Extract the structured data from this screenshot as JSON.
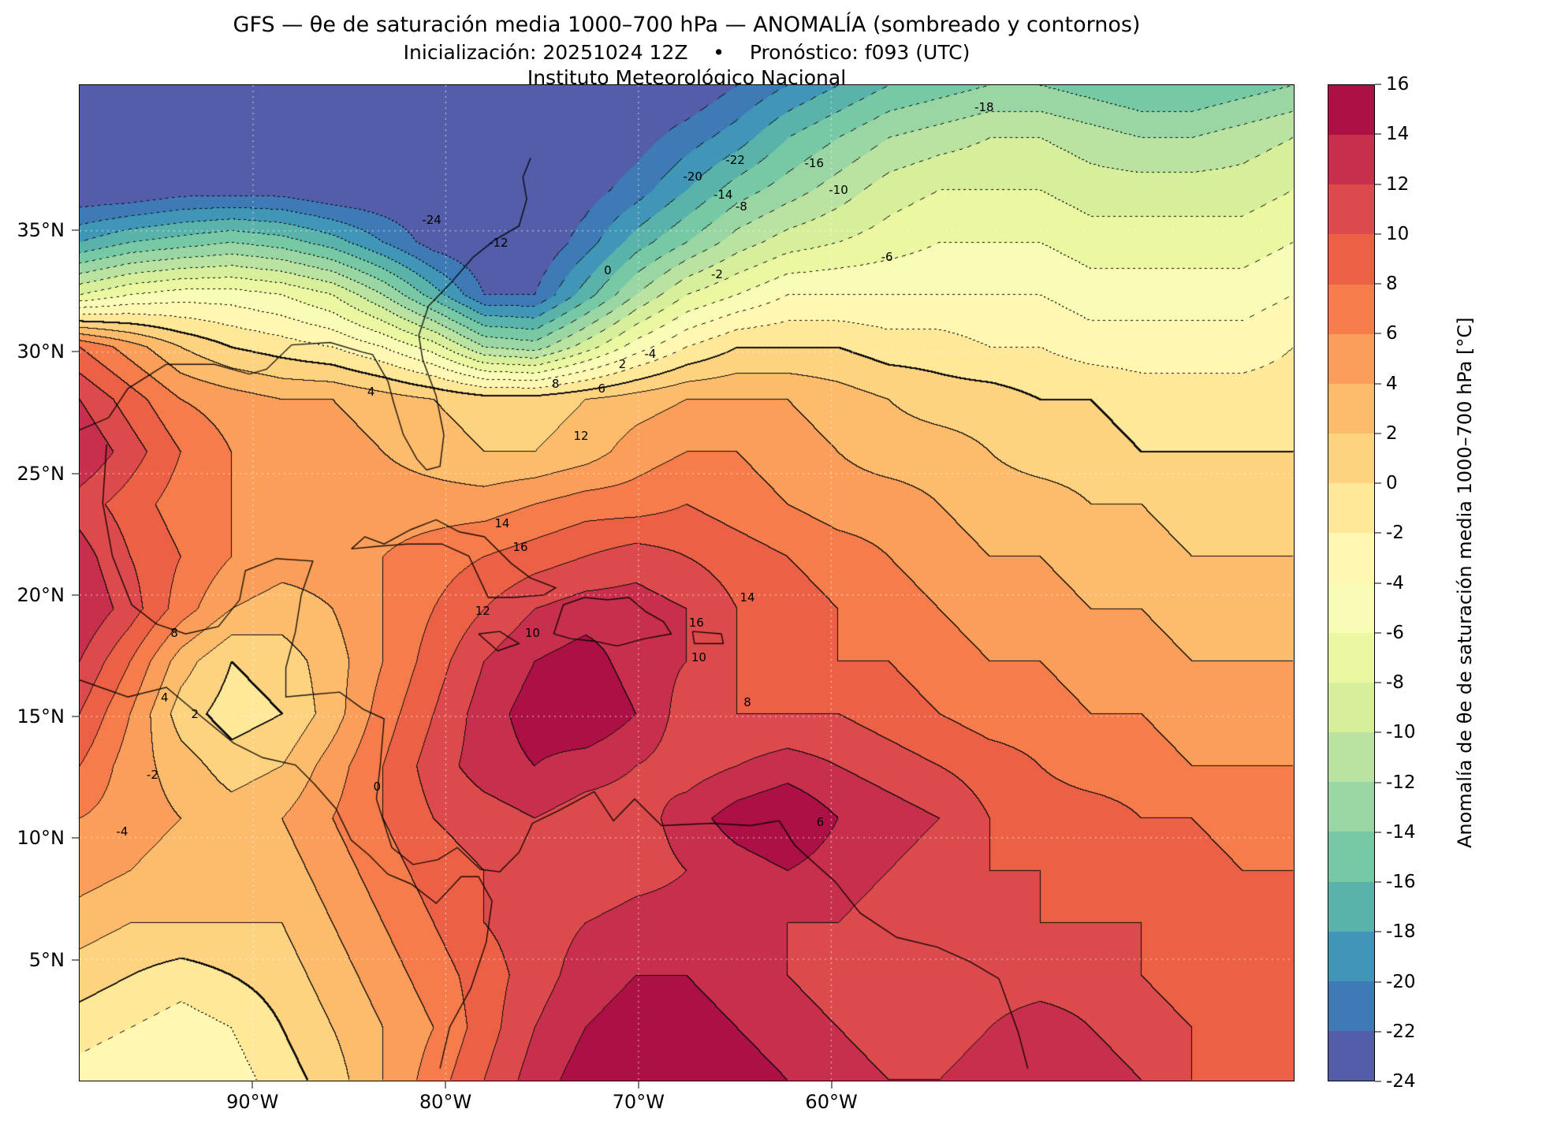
{
  "header": {
    "line1": "GFS — θe de saturación media 1000–700 hPa — ANOMALÍA (sombreado y contornos)",
    "line2": "Inicialización: 20251024 12Z    •    Pronóstico: f093 (UTC)",
    "line3": "Instituto Meteorológico Nacional"
  },
  "axes": {
    "lat_ticks": [
      {
        "label": "35°N",
        "value": 35
      },
      {
        "label": "30°N",
        "value": 30
      },
      {
        "label": "25°N",
        "value": 25
      },
      {
        "label": "20°N",
        "value": 20
      },
      {
        "label": "15°N",
        "value": 15
      },
      {
        "label": "10°N",
        "value": 10
      },
      {
        "label": "5°N",
        "value": 5
      }
    ],
    "lon_ticks": [
      {
        "label": "90°W",
        "value": -90
      },
      {
        "label": "80°W",
        "value": -80
      },
      {
        "label": "70°W",
        "value": -70
      },
      {
        "label": "60°W",
        "value": -60
      }
    ]
  },
  "colorbar": {
    "label": "Anomalía de θe de saturación media 1000–700 hPa [°C]",
    "tick_values": [
      16,
      14,
      12,
      10,
      8,
      6,
      4,
      2,
      0,
      -2,
      -4,
      -6,
      -8,
      -10,
      -12,
      -14,
      -16,
      -18,
      -20,
      -22,
      -24
    ]
  },
  "chart_data": {
    "type": "heatmap",
    "title": "GFS — θe de saturación media 1000–700 hPa — ANOMALÍA (sombreado y contornos)",
    "subtitle": "Inicialización: 20251024 12Z • Pronóstico: f093 (UTC)",
    "institution": "Instituto Meteorológico Nacional",
    "units": "°C",
    "lon_range": [
      -99,
      -36
    ],
    "lat_range": [
      0,
      41
    ],
    "level_min": -24,
    "level_max": 16,
    "level_step": 2,
    "band_colors": [
      "#535da9",
      "#3d7ab6",
      "#3f96b7",
      "#59b3ab",
      "#77c9a5",
      "#9ad6a4",
      "#bae3a1",
      "#d7ef9b",
      "#ecf7a2",
      "#f9fcb5",
      "#fff7b2",
      "#ffe898",
      "#fed380",
      "#fdbb6c",
      "#fb9e59",
      "#f67d4b",
      "#ec6146",
      "#dd4a4c",
      "#c72f4c",
      "#ac1045"
    ],
    "gridline_lats": [
      5,
      10,
      15,
      20,
      25,
      30,
      35
    ],
    "gridline_lons": [
      -90,
      -80,
      -70,
      -60
    ],
    "grid": {
      "cols": 25,
      "rows": 20,
      "values": [
        [
          -24,
          -24,
          -24,
          -24,
          -24,
          -24,
          -24,
          -24,
          -24,
          -24,
          -24,
          -24,
          -24,
          -22,
          -20,
          -18,
          -16,
          -15,
          -14,
          -14,
          -15,
          -16,
          -16,
          -15,
          -14
        ],
        [
          -24,
          -24,
          -24,
          -24,
          -24,
          -24,
          -24,
          -24,
          -24,
          -24,
          -24,
          -23,
          -21,
          -19,
          -16,
          -14,
          -12,
          -11,
          -10,
          -10,
          -11,
          -12,
          -12,
          -11,
          -10
        ],
        [
          -24,
          -24,
          -23,
          -23,
          -23,
          -24,
          -24,
          -24,
          -24,
          -24,
          -23,
          -21,
          -18,
          -15,
          -13,
          -11,
          -9,
          -8,
          -8,
          -8,
          -9,
          -9,
          -9,
          -9,
          -8
        ],
        [
          -18,
          -16,
          -15,
          -14,
          -15,
          -17,
          -20,
          -23,
          -24,
          -24,
          -21,
          -17,
          -14,
          -11,
          -9,
          -8,
          -7,
          -6,
          -6,
          -6,
          -7,
          -7,
          -7,
          -7,
          -6
        ],
        [
          -8,
          -6,
          -5,
          -5,
          -6,
          -8,
          -12,
          -17,
          -22,
          -22,
          -17,
          -12,
          -8,
          -6,
          -4,
          -4,
          -4,
          -4,
          -4,
          -4,
          -5,
          -5,
          -5,
          -5,
          -4
        ],
        [
          8,
          5,
          2,
          0,
          -1,
          -2,
          -4,
          -7,
          -12,
          -13,
          -9,
          -5,
          -2,
          0,
          0,
          0,
          -1,
          -1,
          -2,
          -2,
          -3,
          -3,
          -3,
          -3,
          -2
        ],
        [
          12,
          9,
          6,
          5,
          4,
          4,
          3,
          2,
          1,
          1,
          2,
          3,
          4,
          4,
          4,
          3,
          2,
          1,
          1,
          0,
          0,
          -1,
          -1,
          -1,
          -1
        ],
        [
          14,
          11,
          8,
          6,
          5,
          5,
          4,
          3,
          2,
          2,
          3,
          5,
          6,
          6,
          5,
          4,
          3,
          3,
          2,
          1,
          1,
          0,
          0,
          0,
          0
        ],
        [
          11,
          9,
          7,
          6,
          5,
          5,
          5,
          5,
          5,
          6,
          7,
          7,
          8,
          7,
          6,
          5,
          5,
          4,
          3,
          3,
          2,
          2,
          1,
          1,
          1
        ],
        [
          13,
          10,
          8,
          6,
          5,
          5,
          6,
          7,
          8,
          9,
          10,
          11,
          10,
          9,
          8,
          7,
          6,
          5,
          4,
          4,
          3,
          3,
          2,
          2,
          2
        ],
        [
          14,
          11,
          7,
          4,
          3,
          4,
          6,
          8,
          10,
          12,
          13,
          13,
          12,
          10,
          9,
          8,
          7,
          6,
          5,
          5,
          4,
          4,
          3,
          3,
          3
        ],
        [
          12,
          8,
          3,
          0,
          1,
          3,
          6,
          9,
          12,
          14,
          15,
          13,
          12,
          10,
          9,
          8,
          8,
          7,
          6,
          6,
          5,
          5,
          4,
          4,
          4
        ],
        [
          10,
          6,
          1,
          -1,
          0,
          3,
          7,
          10,
          13,
          15,
          16,
          14,
          11,
          10,
          10,
          10,
          9,
          8,
          7,
          7,
          6,
          6,
          5,
          5,
          5
        ],
        [
          8,
          5,
          3,
          1,
          2,
          5,
          8,
          11,
          13,
          14,
          13,
          12,
          11,
          12,
          13,
          12,
          11,
          10,
          9,
          8,
          7,
          7,
          6,
          6,
          6
        ],
        [
          6,
          5,
          4,
          3,
          4,
          6,
          8,
          10,
          11,
          12,
          11,
          11,
          13,
          15,
          16,
          14,
          13,
          12,
          10,
          9,
          9,
          8,
          8,
          7,
          7
        ],
        [
          5,
          4,
          3,
          3,
          3,
          5,
          7,
          9,
          10,
          11,
          10,
          11,
          12,
          13,
          14,
          13,
          12,
          11,
          10,
          10,
          9,
          9,
          9,
          8,
          8
        ],
        [
          3,
          2,
          2,
          2,
          2,
          4,
          6,
          8,
          10,
          11,
          12,
          13,
          13,
          12,
          12,
          12,
          11,
          11,
          10,
          10,
          10,
          10,
          9,
          9,
          9
        ],
        [
          1,
          0,
          -1,
          0,
          1,
          3,
          5,
          7,
          9,
          11,
          13,
          14,
          14,
          13,
          12,
          11,
          11,
          10,
          11,
          11,
          11,
          10,
          9,
          9,
          8
        ],
        [
          -1,
          -2,
          -3,
          -2,
          0,
          2,
          4,
          6,
          9,
          12,
          14,
          15,
          15,
          14,
          13,
          12,
          11,
          11,
          12,
          13,
          12,
          11,
          10,
          9,
          8
        ],
        [
          -3,
          -4,
          -4,
          -3,
          -1,
          1,
          4,
          7,
          10,
          13,
          15,
          16,
          16,
          15,
          14,
          13,
          12,
          12,
          13,
          14,
          13,
          12,
          10,
          9,
          9
        ]
      ]
    },
    "contour_labels": [
      {
        "t": "-24",
        "x": 29,
        "y": 13.5
      },
      {
        "t": "-22",
        "x": 54,
        "y": 7.5
      },
      {
        "t": "-20",
        "x": 50.5,
        "y": 9.2
      },
      {
        "t": "-18",
        "x": 74.5,
        "y": 2.2
      },
      {
        "t": "-16",
        "x": 60.5,
        "y": 7.8
      },
      {
        "t": "-14",
        "x": 53,
        "y": 11
      },
      {
        "t": "-12",
        "x": 34.5,
        "y": 15.8
      },
      {
        "t": "-10",
        "x": 62.5,
        "y": 10.5
      },
      {
        "t": "-8",
        "x": 54.5,
        "y": 12.2
      },
      {
        "t": "-6",
        "x": 66.5,
        "y": 17.3
      },
      {
        "t": "-4",
        "x": 47,
        "y": 27
      },
      {
        "t": "-2",
        "x": 52.5,
        "y": 19
      },
      {
        "t": "0",
        "x": 43.5,
        "y": 18.6
      },
      {
        "t": "2",
        "x": 44.7,
        "y": 28
      },
      {
        "t": "4",
        "x": 24,
        "y": 30.8
      },
      {
        "t": "6",
        "x": 43,
        "y": 30.5
      },
      {
        "t": "8",
        "x": 39.2,
        "y": 30
      },
      {
        "t": "12",
        "x": 41.3,
        "y": 35.2
      },
      {
        "t": "14",
        "x": 34.8,
        "y": 44
      },
      {
        "t": "16",
        "x": 36.3,
        "y": 46.4
      },
      {
        "t": "14",
        "x": 55,
        "y": 51.5
      },
      {
        "t": "16",
        "x": 50.8,
        "y": 54
      },
      {
        "t": "12",
        "x": 33.2,
        "y": 52.8
      },
      {
        "t": "10",
        "x": 37.3,
        "y": 55
      },
      {
        "t": "10",
        "x": 51,
        "y": 57.5
      },
      {
        "t": "8",
        "x": 7.8,
        "y": 55
      },
      {
        "t": "8",
        "x": 55,
        "y": 62
      },
      {
        "t": "6",
        "x": 61,
        "y": 74
      },
      {
        "t": "4",
        "x": 7,
        "y": 61.5
      },
      {
        "t": "2",
        "x": 9.5,
        "y": 63.2
      },
      {
        "t": "0",
        "x": 24.5,
        "y": 70.5
      },
      {
        "t": "-2",
        "x": 6,
        "y": 69.3
      },
      {
        "t": "-4",
        "x": 3.5,
        "y": 75
      }
    ]
  },
  "coastlines": {
    "stroke": "#000000",
    "lines": [
      [
        [
          -99,
          26.8
        ],
        [
          -97.5,
          27.3
        ],
        [
          -96.5,
          28.5
        ],
        [
          -94.5,
          29.5
        ],
        [
          -92,
          29.5
        ],
        [
          -90.2,
          29.1
        ],
        [
          -89.3,
          29.3
        ],
        [
          -88,
          30.3
        ],
        [
          -86,
          30.4
        ],
        [
          -84.3,
          30.0
        ],
        [
          -83.8,
          29.9
        ],
        [
          -83,
          28.8
        ],
        [
          -82.7,
          27.9
        ],
        [
          -82.2,
          26.6
        ],
        [
          -81.5,
          25.6
        ],
        [
          -81,
          25.15
        ],
        [
          -80.3,
          25.3
        ],
        [
          -80.1,
          26.6
        ],
        [
          -80.5,
          28.2
        ],
        [
          -81.2,
          29.7
        ],
        [
          -81.4,
          30.7
        ],
        [
          -80.9,
          31.9
        ],
        [
          -79.8,
          32.8
        ],
        [
          -78.6,
          33.9
        ],
        [
          -77.5,
          34.6
        ],
        [
          -76.2,
          35.2
        ],
        [
          -75.8,
          36.3
        ],
        [
          -76,
          37.2
        ],
        [
          -75.6,
          38
        ]
      ],
      [
        [
          -97.6,
          26.2
        ],
        [
          -97.8,
          23.8
        ],
        [
          -97.3,
          21.6
        ],
        [
          -96.3,
          19.6
        ],
        [
          -95.0,
          18.8
        ],
        [
          -93.5,
          18.4
        ],
        [
          -91.8,
          18.7
        ],
        [
          -90.7,
          19.8
        ],
        [
          -90.4,
          21.0
        ],
        [
          -88.8,
          21.5
        ],
        [
          -86.9,
          21.4
        ],
        [
          -87.5,
          20.0
        ],
        [
          -87.8,
          18.5
        ],
        [
          -88.3,
          17.0
        ],
        [
          -88.3,
          15.8
        ],
        [
          -87.0,
          15.9
        ],
        [
          -85.5,
          16.0
        ],
        [
          -84.3,
          15.3
        ],
        [
          -83.2,
          14.9
        ],
        [
          -83.4,
          13.0
        ],
        [
          -83.6,
          11.6
        ],
        [
          -82.8,
          9.6
        ],
        [
          -81.7,
          8.9
        ],
        [
          -80.4,
          9.1
        ],
        [
          -79.4,
          9.6
        ],
        [
          -78.2,
          8.7
        ],
        [
          -77.2,
          8.6
        ],
        [
          -76.2,
          9.4
        ],
        [
          -75.5,
          10.6
        ],
        [
          -74.2,
          11.1
        ],
        [
          -72.3,
          11.9
        ],
        [
          -71.3,
          10.7
        ],
        [
          -70.2,
          11.6
        ],
        [
          -68.8,
          10.5
        ],
        [
          -66.2,
          10.6
        ],
        [
          -64.2,
          10.5
        ],
        [
          -62.7,
          10.7
        ],
        [
          -61.9,
          9.7
        ],
        [
          -60.8,
          8.9
        ],
        [
          -59.8,
          8.2
        ],
        [
          -58.5,
          6.9
        ],
        [
          -56.6,
          5.9
        ],
        [
          -54.5,
          5.5
        ],
        [
          -52.8,
          4.9
        ],
        [
          -51.3,
          4.2
        ],
        [
          -50.3,
          2.0
        ],
        [
          -49.8,
          0.5
        ]
      ],
      [
        [
          -99,
          16.5
        ],
        [
          -96.5,
          15.8
        ],
        [
          -94.5,
          16.2
        ],
        [
          -93,
          15.2
        ],
        [
          -91,
          13.9
        ],
        [
          -89.5,
          13.3
        ],
        [
          -87.8,
          13.0
        ],
        [
          -86.8,
          12.2
        ],
        [
          -85.7,
          11.2
        ],
        [
          -84.9,
          9.9
        ],
        [
          -84.0,
          9.3
        ],
        [
          -83.0,
          8.5
        ],
        [
          -81.8,
          8.1
        ],
        [
          -80.5,
          7.3
        ],
        [
          -79.2,
          8.4
        ],
        [
          -78.3,
          8.4
        ],
        [
          -77.6,
          7.4
        ],
        [
          -77.9,
          5.7
        ],
        [
          -78.7,
          3.8
        ],
        [
          -79.8,
          2.2
        ],
        [
          -80.3,
          0.5
        ]
      ],
      [
        [
          -84.9,
          21.9
        ],
        [
          -84.2,
          22.4
        ],
        [
          -83.2,
          22.1
        ],
        [
          -81.8,
          22.7
        ],
        [
          -80.5,
          23.1
        ],
        [
          -79.3,
          22.6
        ],
        [
          -78.0,
          22.4
        ],
        [
          -76.6,
          21.3
        ],
        [
          -75.6,
          20.7
        ],
        [
          -74.3,
          20.3
        ],
        [
          -74.9,
          20.0
        ],
        [
          -76.5,
          19.9
        ],
        [
          -77.8,
          19.9
        ],
        [
          -78.8,
          21.6
        ],
        [
          -80.2,
          22.1
        ],
        [
          -82.0,
          22.1
        ],
        [
          -83.6,
          22.0
        ],
        [
          -84.9,
          21.9
        ]
      ],
      [
        [
          -74.4,
          18.4
        ],
        [
          -73.9,
          19.6
        ],
        [
          -72.8,
          19.9
        ],
        [
          -71.6,
          19.8
        ],
        [
          -70.5,
          19.9
        ],
        [
          -69.6,
          19.3
        ],
        [
          -68.7,
          18.9
        ],
        [
          -68.3,
          18.4
        ],
        [
          -69.7,
          18.2
        ],
        [
          -71.1,
          17.9
        ],
        [
          -72.3,
          18.1
        ],
        [
          -73.5,
          18.2
        ],
        [
          -74.4,
          18.4
        ]
      ],
      [
        [
          -78.3,
          18.4
        ],
        [
          -77.2,
          18.5
        ],
        [
          -76.2,
          18.0
        ],
        [
          -77.3,
          17.7
        ],
        [
          -78.3,
          18.4
        ]
      ],
      [
        [
          -67.2,
          18.5
        ],
        [
          -65.7,
          18.4
        ],
        [
          -65.6,
          18.0
        ],
        [
          -67.1,
          18.0
        ],
        [
          -67.2,
          18.5
        ]
      ]
    ]
  }
}
